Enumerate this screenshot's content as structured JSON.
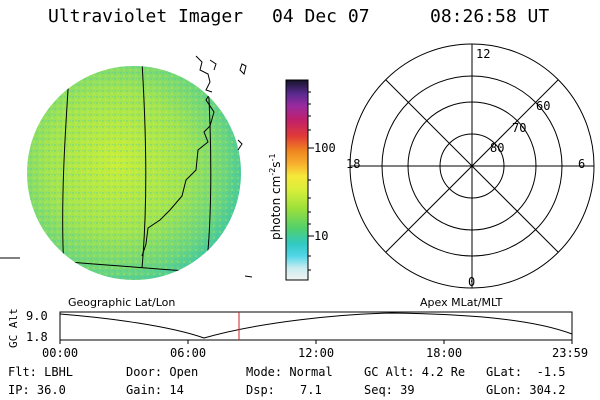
{
  "header": {
    "instrument": "Ultraviolet Imager",
    "date": "04 Dec 07",
    "time": "08:26:58 UT"
  },
  "colorbar": {
    "label": "photon cm",
    "label_sup1": "-2",
    "label_s": "s",
    "label_sup2": "-1",
    "tick_100": "100",
    "tick_10": "10"
  },
  "polar": {
    "mlt_top": "12",
    "mlt_bottom": "0",
    "mlt_left": "18",
    "mlt_right": "6",
    "lat_60": "60",
    "lat_70": "70",
    "lat_80": "80"
  },
  "timeline": {
    "left_caption": "Geographic Lat/Lon",
    "right_caption": "Apex MLat/MLT",
    "y_axis_label": "GC Alt",
    "y_top": "9.0",
    "y_bottom": "1.8",
    "ticks": [
      "00:00",
      "06:00",
      "12:00",
      "18:00",
      "23:59"
    ]
  },
  "info": {
    "filter": "Flt: LBHL",
    "ip": "IP: 36.0",
    "door": "Door: Open",
    "gain": "Gain: 14",
    "mode": "Mode: Normal",
    "dsp_label": "Dsp:",
    "dsp_value": "7.1",
    "gc_alt": "GC Alt: 4.2 Re",
    "seq": "Seq: 39",
    "glat": "GLat:  -1.5",
    "glon": "GLon: 304.2"
  },
  "colors": {
    "disk_base": "#a6e64a",
    "disk_edge": "#3ec9a0",
    "marker": "#cc2222"
  }
}
